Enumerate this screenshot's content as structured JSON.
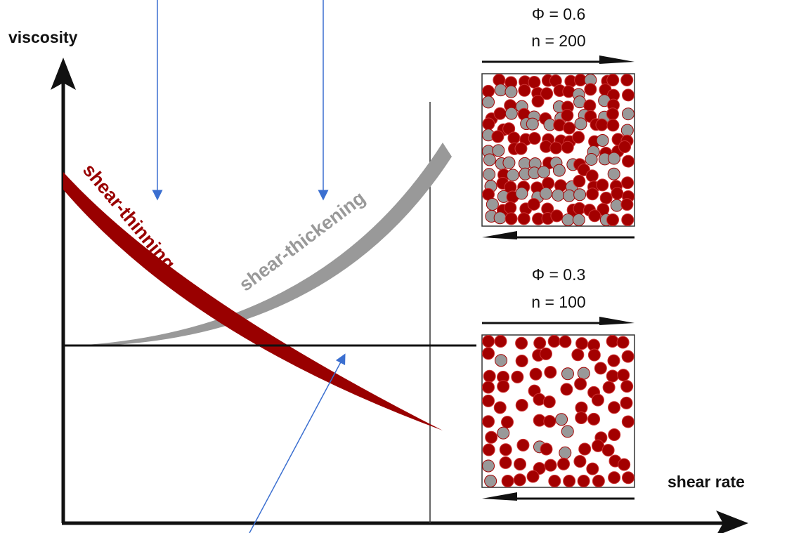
{
  "axes": {
    "y_label": "viscosity",
    "x_label": "shear rate"
  },
  "curves": {
    "thinning": "shear-thinning",
    "thickening": "shear-thickening"
  },
  "panels": [
    {
      "phi": "Φ = 0.6",
      "n": "n = 200"
    },
    {
      "phi": "Φ = 0.3",
      "n": "n = 100"
    }
  ]
}
